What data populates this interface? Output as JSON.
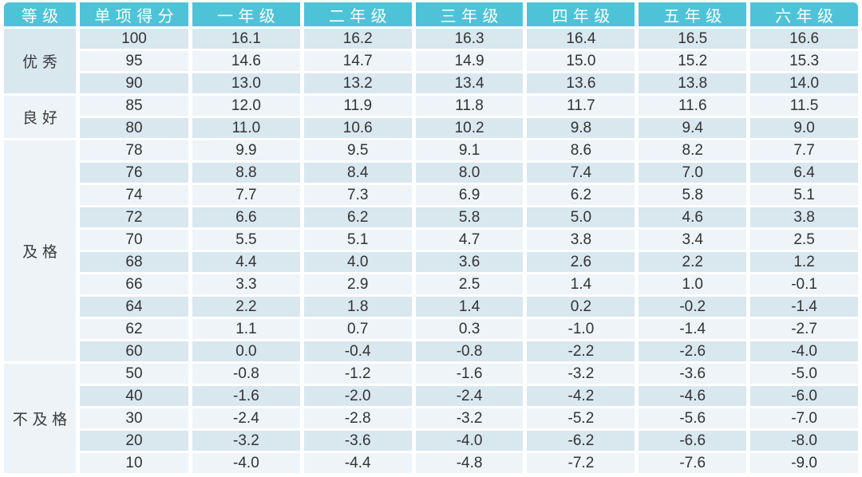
{
  "chart_data": {
    "type": "table",
    "columns": [
      "等级",
      "单项得分",
      "一年级",
      "二年级",
      "三年级",
      "四年级",
      "五年级",
      "六年级"
    ],
    "groups": [
      {
        "grade": "优秀",
        "rows": [
          {
            "score": "100",
            "values": [
              "16.1",
              "16.2",
              "16.3",
              "16.4",
              "16.5",
              "16.6"
            ]
          },
          {
            "score": "95",
            "values": [
              "14.6",
              "14.7",
              "14.9",
              "15.0",
              "15.2",
              "15.3"
            ]
          },
          {
            "score": "90",
            "values": [
              "13.0",
              "13.2",
              "13.4",
              "13.6",
              "13.8",
              "14.0"
            ]
          }
        ]
      },
      {
        "grade": "良好",
        "rows": [
          {
            "score": "85",
            "values": [
              "12.0",
              "11.9",
              "11.8",
              "11.7",
              "11.6",
              "11.5"
            ]
          },
          {
            "score": "80",
            "values": [
              "11.0",
              "10.6",
              "10.2",
              "9.8",
              "9.4",
              "9.0"
            ]
          }
        ]
      },
      {
        "grade": "及格",
        "rows": [
          {
            "score": "78",
            "values": [
              "9.9",
              "9.5",
              "9.1",
              "8.6",
              "8.2",
              "7.7"
            ]
          },
          {
            "score": "76",
            "values": [
              "8.8",
              "8.4",
              "8.0",
              "7.4",
              "7.0",
              "6.4"
            ]
          },
          {
            "score": "74",
            "values": [
              "7.7",
              "7.3",
              "6.9",
              "6.2",
              "5.8",
              "5.1"
            ]
          },
          {
            "score": "72",
            "values": [
              "6.6",
              "6.2",
              "5.8",
              "5.0",
              "4.6",
              "3.8"
            ]
          },
          {
            "score": "70",
            "values": [
              "5.5",
              "5.1",
              "4.7",
              "3.8",
              "3.4",
              "2.5"
            ]
          },
          {
            "score": "68",
            "values": [
              "4.4",
              "4.0",
              "3.6",
              "2.6",
              "2.2",
              "1.2"
            ]
          },
          {
            "score": "66",
            "values": [
              "3.3",
              "2.9",
              "2.5",
              "1.4",
              "1.0",
              "-0.1"
            ]
          },
          {
            "score": "64",
            "values": [
              "2.2",
              "1.8",
              "1.4",
              "0.2",
              "-0.2",
              "-1.4"
            ]
          },
          {
            "score": "62",
            "values": [
              "1.1",
              "0.7",
              "0.3",
              "-1.0",
              "-1.4",
              "-2.7"
            ]
          },
          {
            "score": "60",
            "values": [
              "0.0",
              "-0.4",
              "-0.8",
              "-2.2",
              "-2.6",
              "-4.0"
            ]
          }
        ]
      },
      {
        "grade": "不及格",
        "rows": [
          {
            "score": "50",
            "values": [
              "-0.8",
              "-1.2",
              "-1.6",
              "-3.2",
              "-3.6",
              "-5.0"
            ]
          },
          {
            "score": "40",
            "values": [
              "-1.6",
              "-2.0",
              "-2.4",
              "-4.2",
              "-4.6",
              "-6.0"
            ]
          },
          {
            "score": "30",
            "values": [
              "-2.4",
              "-2.8",
              "-3.2",
              "-5.2",
              "-5.6",
              "-7.0"
            ]
          },
          {
            "score": "20",
            "values": [
              "-3.2",
              "-3.6",
              "-4.0",
              "-6.2",
              "-6.6",
              "-8.0"
            ]
          },
          {
            "score": "10",
            "values": [
              "-4.0",
              "-4.4",
              "-4.8",
              "-7.2",
              "-7.6",
              "-9.0"
            ]
          }
        ]
      }
    ]
  },
  "colors": {
    "header_bg": "#4ec3d8",
    "header_text": "#ffffff",
    "row_dark": "#d9e7ef",
    "row_light": "#eef4f8",
    "grade_excellent_bg": "#d9e7ef",
    "grade_default_bg": "#edf3f7",
    "text": "#333333",
    "page_bg": "#ffffff"
  }
}
